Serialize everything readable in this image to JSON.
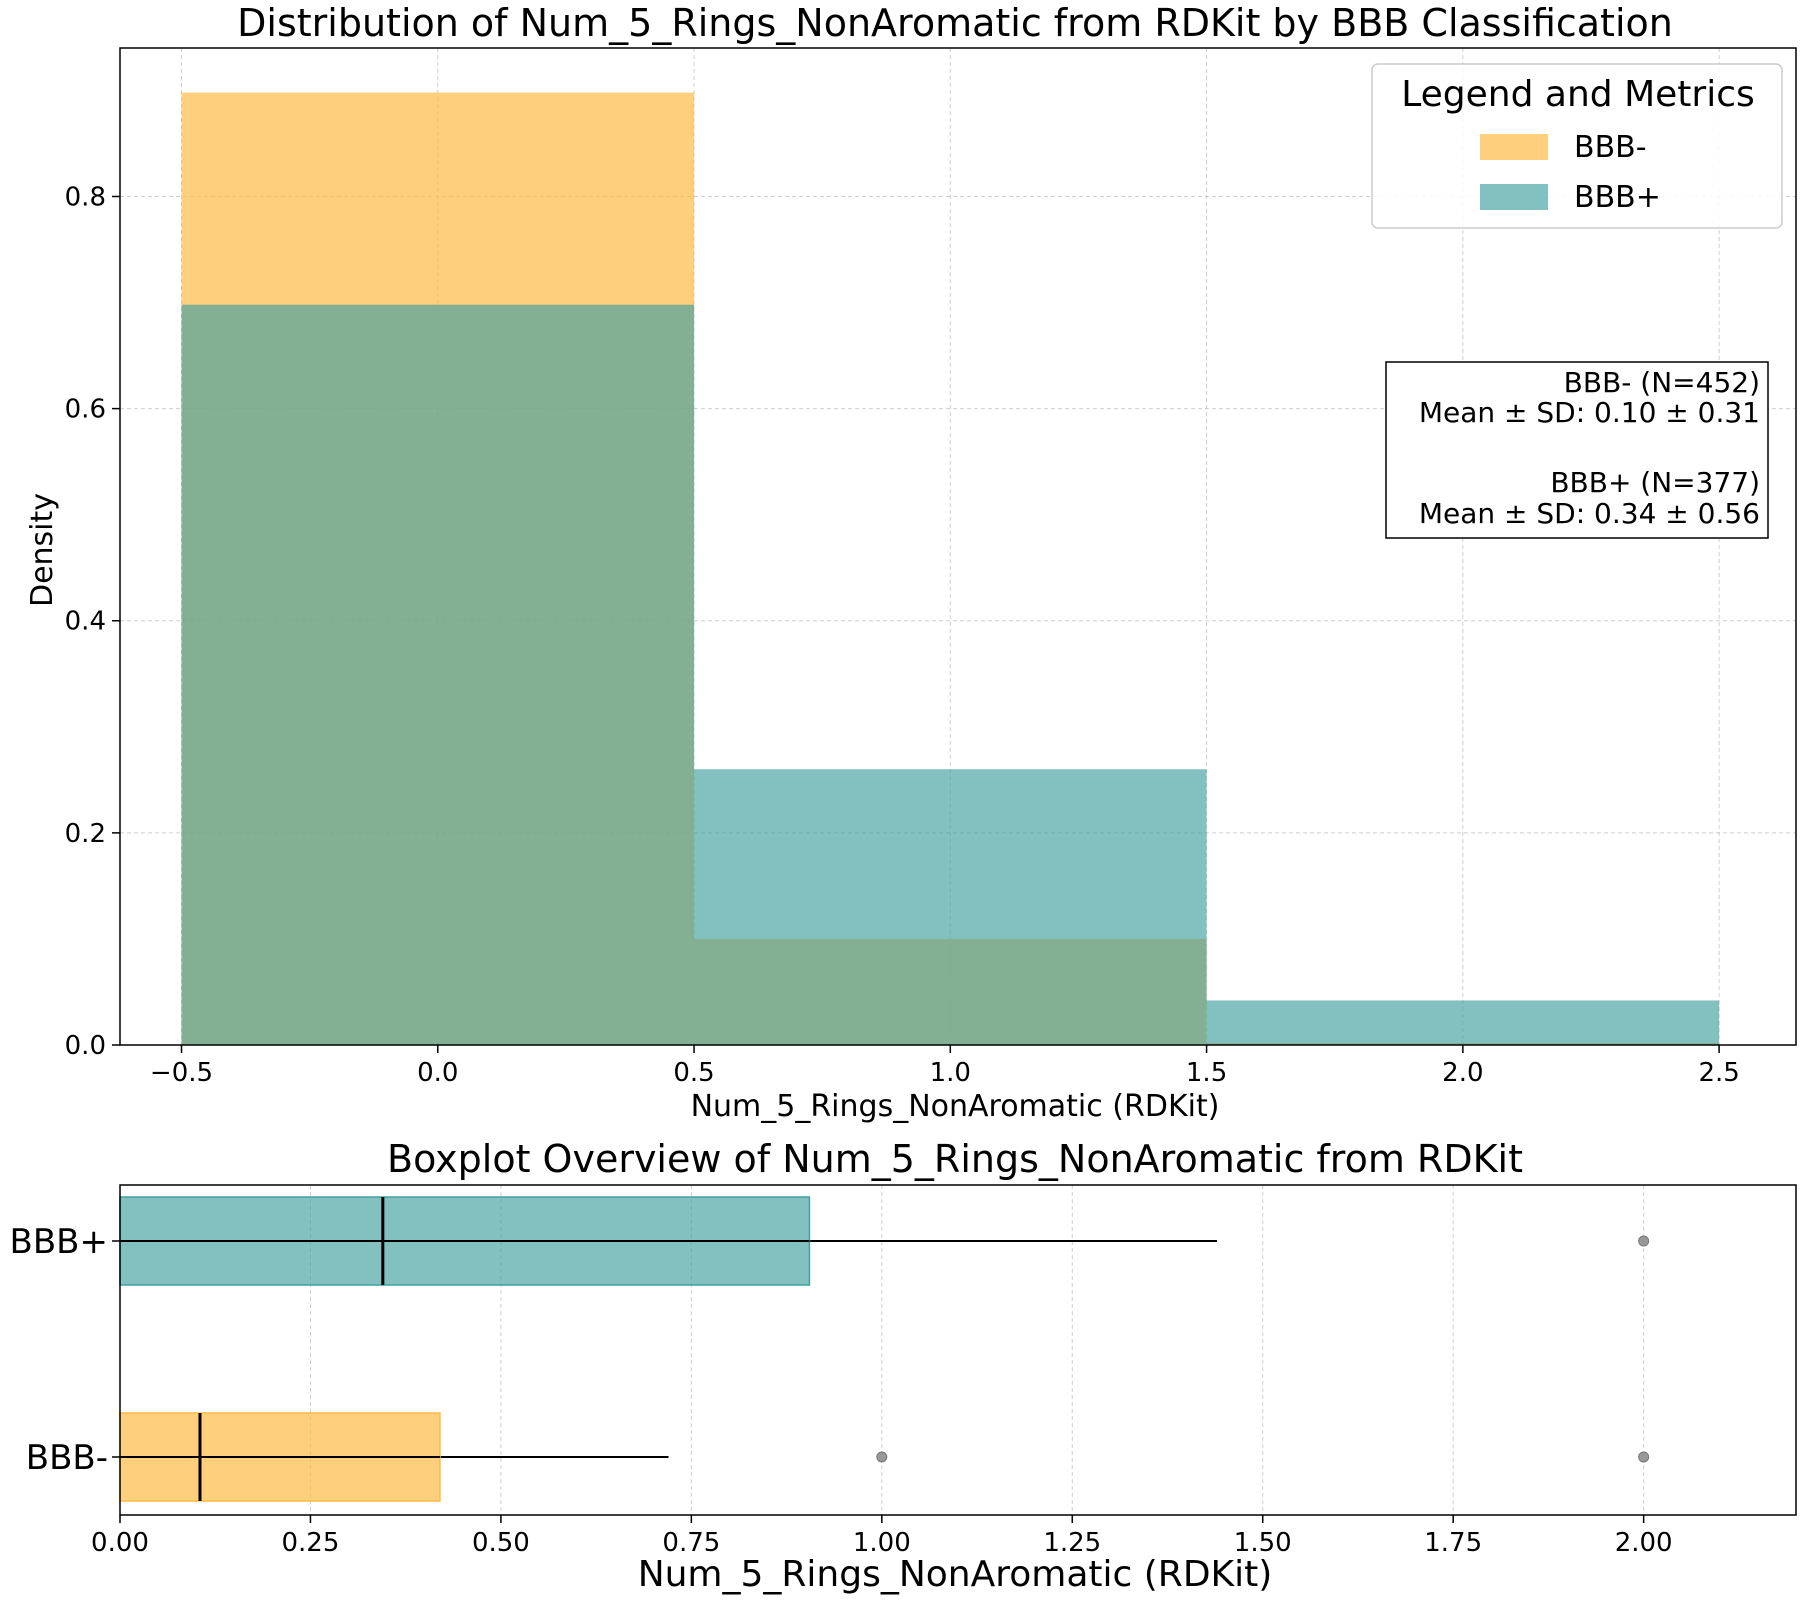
{
  "chart_data": [
    {
      "type": "histogram",
      "title": "Distribution of Num_5_Rings_NonAromatic from RDKit by BBB Classification",
      "xlabel": "Num_5_Rings_NonAromatic (RDKit)",
      "ylabel": "Density",
      "xlim": [
        -0.62,
        2.65
      ],
      "ylim": [
        0,
        0.94
      ],
      "xticks": [
        -0.5,
        0.0,
        0.5,
        1.0,
        1.5,
        2.0,
        2.5
      ],
      "xtick_labels": [
        "−0.5",
        "0.0",
        "0.5",
        "1.0",
        "1.5",
        "2.0",
        "2.5"
      ],
      "yticks": [
        0.0,
        0.2,
        0.4,
        0.6,
        0.8
      ],
      "ytick_labels": [
        "0.0",
        "0.2",
        "0.4",
        "0.6",
        "0.8"
      ],
      "grid": true,
      "bin_edges": [
        -0.5,
        0.5,
        1.5,
        2.5
      ],
      "series": [
        {
          "name": "BBB-",
          "color": "#FDBB46",
          "alpha": 0.7,
          "values": [
            0.898,
            0.1,
            0.002
          ]
        },
        {
          "name": "BBB+",
          "color": "#40A0A0",
          "alpha": 0.65,
          "values": [
            0.698,
            0.26,
            0.042
          ]
        }
      ],
      "legend": {
        "title": "Legend and Metrics",
        "placement": "top-right",
        "entries": [
          "BBB-",
          "BBB+"
        ]
      },
      "annotation": {
        "placement": "right",
        "lines": [
          "BBB- (N=452)",
          "Mean ± SD: 0.10 ± 0.31",
          "",
          "BBB+ (N=377)",
          "Mean ± SD: 0.34 ± 0.56"
        ]
      }
    },
    {
      "type": "boxplot",
      "orientation": "horizontal",
      "title": "Boxplot Overview of Num_5_Rings_NonAromatic from RDKit",
      "xlabel": "Num_5_Rings_NonAromatic (RDKit)",
      "xlim": [
        0,
        2.2
      ],
      "xticks": [
        0,
        0.25,
        0.5,
        0.75,
        1.0,
        1.25,
        1.5,
        1.75,
        2.0
      ],
      "xtick_labels": [
        "0.00",
        "0.25",
        "0.50",
        "0.75",
        "1.00",
        "1.25",
        "1.50",
        "1.75",
        "2.00"
      ],
      "categories": [
        "BBB+",
        "BBB-"
      ],
      "boxes": [
        {
          "name": "BBB+",
          "color": "#40A0A0",
          "alpha": 0.65,
          "q1": 0.0,
          "median": 0.345,
          "q3": 0.905,
          "whisker_low": 0.0,
          "whisker_high": 1.44,
          "outliers": [
            2.0
          ]
        },
        {
          "name": "BBB-",
          "color": "#FDBB46",
          "alpha": 0.7,
          "q1": 0.0,
          "median": 0.105,
          "q3": 0.42,
          "whisker_low": 0.0,
          "whisker_high": 0.72,
          "outliers": [
            1.0,
            2.0
          ]
        }
      ]
    }
  ]
}
